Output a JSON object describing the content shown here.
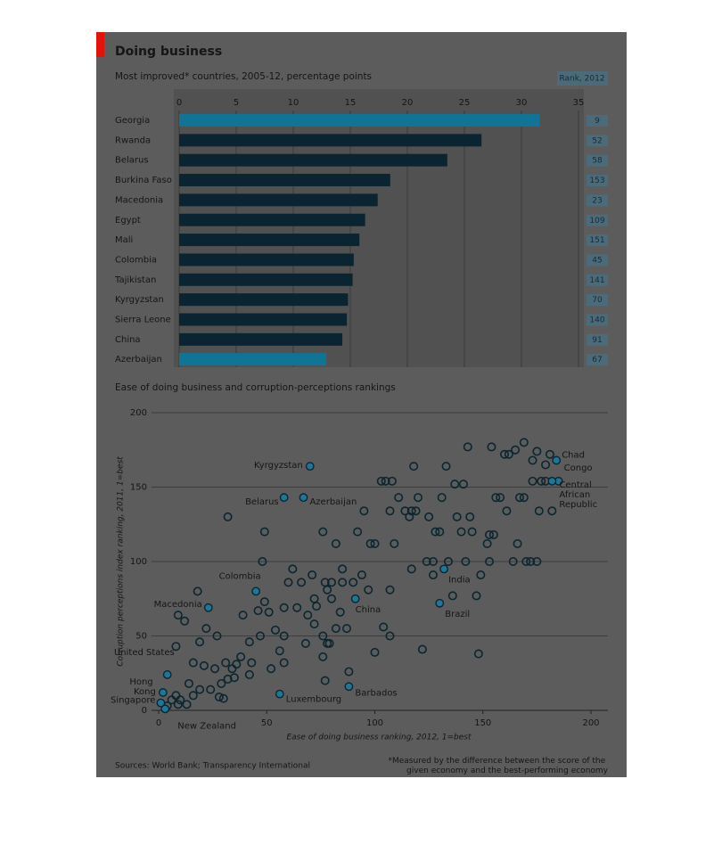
{
  "title": "Doing business",
  "source": "Sources: World Bank; Transparency International",
  "footnote": "*Measured by the difference between the score of the given economy and the best-performing economy",
  "chart_data": [
    {
      "type": "hbar",
      "subtitle": "Most improved* countries, 2005-12, percentage points",
      "rank_header": "Rank, 2012",
      "categories": [
        "Georgia",
        "Rwanda",
        "Belarus",
        "Burkina Faso",
        "Macedonia",
        "Egypt",
        "Mali",
        "Colombia",
        "Tajikistan",
        "Kyrgyzstan",
        "Sierra Leone",
        "China",
        "Azerbaijan"
      ],
      "values": [
        31.6,
        26.5,
        23.5,
        18.5,
        17.4,
        16.3,
        15.8,
        15.3,
        15.2,
        14.8,
        14.7,
        14.3,
        12.9
      ],
      "ranks": [
        9,
        52,
        58,
        153,
        23,
        109,
        151,
        45,
        141,
        70,
        140,
        91,
        67
      ],
      "colors": [
        "#0f7496",
        "#0a2431",
        "#0a2431",
        "#0a2431",
        "#0a2431",
        "#0a2431",
        "#0a2431",
        "#0a2431",
        "#0a2431",
        "#0a2431",
        "#0a2431",
        "#0a2431",
        "#0f7496"
      ],
      "xlim": [
        0,
        35
      ],
      "xticks": [
        0,
        5,
        10,
        15,
        20,
        25,
        30,
        35
      ],
      "grid": true
    },
    {
      "type": "scatter",
      "title": "Ease of doing business and corruption-perceptions rankings",
      "xlabel": "Ease of doing business ranking, 2012, 1=best",
      "ylabel": "Corruption perceptions index ranking, 2011, 1=best",
      "xlim": [
        0,
        200
      ],
      "ylim": [
        0,
        200
      ],
      "xticks": [
        0,
        50,
        100,
        150,
        200
      ],
      "yticks": [
        0,
        50,
        100,
        150,
        200
      ],
      "grid": true,
      "highlight_color": "#1e7796",
      "point_color": "#0b2631",
      "highlighted": [
        {
          "label": "Kyrgyzstan",
          "x": 70,
          "y": 164
        },
        {
          "label": "Belarus",
          "x": 58,
          "y": 143
        },
        {
          "label": "Azerbaijan",
          "x": 67,
          "y": 143
        },
        {
          "label": "Chad",
          "x": 184,
          "y": 168
        },
        {
          "label": "Congo",
          "x": 185,
          "y": 154
        },
        {
          "label": "Central African Republic",
          "x": 182,
          "y": 154
        },
        {
          "label": "Colombia",
          "x": 45,
          "y": 80
        },
        {
          "label": "Macedonia",
          "x": 23,
          "y": 69
        },
        {
          "label": "China",
          "x": 91,
          "y": 75
        },
        {
          "label": "India",
          "x": 132,
          "y": 95
        },
        {
          "label": "Brazil",
          "x": 130,
          "y": 72
        },
        {
          "label": "United States",
          "x": 4,
          "y": 24
        },
        {
          "label": "Hong Kong",
          "x": 2,
          "y": 12
        },
        {
          "label": "Singapore",
          "x": 1,
          "y": 5
        },
        {
          "label": "New Zealand",
          "x": 3,
          "y": 1
        },
        {
          "label": "Luxembourg",
          "x": 56,
          "y": 11
        },
        {
          "label": "Barbados",
          "x": 88,
          "y": 16
        }
      ],
      "others": {
        "x": [
          143,
          154,
          160,
          162,
          165,
          169,
          173,
          175,
          179,
          181,
          173,
          177,
          179,
          156,
          158,
          167,
          169,
          161,
          176,
          182,
          166,
          153,
          155,
          152,
          153,
          164,
          170,
          172,
          175,
          149,
          147,
          148,
          118,
          133,
          103,
          105,
          108,
          137,
          141,
          111,
          120,
          131,
          114,
          107,
          117,
          119,
          95,
          116,
          125,
          138,
          144,
          128,
          130,
          140,
          145,
          92,
          76,
          82,
          98,
          100,
          109,
          117,
          124,
          127,
          134,
          142,
          127,
          107,
          136,
          100,
          122,
          104,
          107,
          97,
          62,
          71,
          60,
          66,
          77,
          80,
          85,
          85,
          90,
          94,
          80,
          78,
          72,
          69,
          73,
          84,
          87,
          72,
          64,
          58,
          49,
          46,
          51,
          39,
          48,
          49,
          32,
          76,
          78,
          68,
          76,
          79,
          82,
          54,
          58,
          47,
          42,
          56,
          58,
          43,
          38,
          42,
          35,
          34,
          36,
          31,
          29,
          26,
          24,
          19,
          21,
          16,
          18,
          9,
          12,
          22,
          27,
          8,
          19,
          14,
          16,
          13,
          10,
          6,
          8,
          28,
          30,
          77,
          88,
          52,
          32,
          4,
          9
        ],
        "y": [
          177,
          177,
          172,
          172,
          175,
          180,
          168,
          174,
          165,
          172,
          154,
          154,
          154,
          143,
          143,
          143,
          143,
          134,
          134,
          134,
          112,
          118,
          118,
          112,
          100,
          100,
          100,
          100,
          100,
          91,
          77,
          38,
          164,
          164,
          154,
          154,
          154,
          152,
          152,
          143,
          143,
          143,
          134,
          134,
          134,
          134,
          134,
          130,
          130,
          130,
          130,
          120,
          120,
          120,
          120,
          120,
          120,
          112,
          112,
          112,
          112,
          95,
          100,
          100,
          100,
          100,
          91,
          81,
          77,
          39,
          41,
          56,
          50,
          81,
          95,
          91,
          86,
          86,
          86,
          86,
          86,
          95,
          86,
          91,
          75,
          81,
          75,
          64,
          70,
          66,
          55,
          58,
          69,
          69,
          73,
          67,
          66,
          64,
          100,
          120,
          130,
          50,
          45,
          45,
          36,
          45,
          55,
          54,
          50,
          50,
          46,
          40,
          32,
          32,
          36,
          24,
          22,
          28,
          31,
          32,
          18,
          28,
          14,
          14,
          30,
          32,
          80,
          64,
          60,
          55,
          50,
          43,
          46,
          18,
          10,
          4,
          7,
          7,
          10,
          9,
          8,
          20,
          26,
          28,
          21,
          3,
          4
        ]
      }
    }
  ]
}
